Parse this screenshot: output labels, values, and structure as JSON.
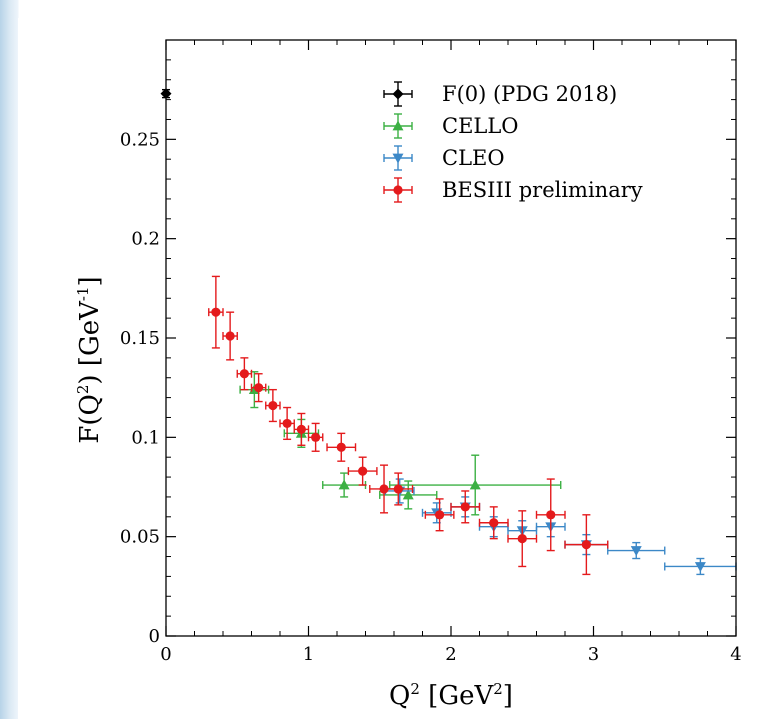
{
  "chart_data": {
    "type": "scatter",
    "xlabel": "Q² [GeV²]",
    "ylabel": "F(Q²) [GeV⁻¹]",
    "xlim": [
      0,
      4
    ],
    "ylim": [
      0,
      0.3
    ],
    "xticks": [
      "0",
      "1",
      "2",
      "3",
      "4"
    ],
    "yticks": [
      "0",
      "0.05",
      "0.1",
      "0.15",
      "0.2",
      "0.25"
    ],
    "grid": false,
    "legend_placement": "top-right",
    "series": [
      {
        "name": "F(0) (PDG 2018)",
        "color": "#000000",
        "marker": "diamond",
        "points": [
          {
            "x": 0.0,
            "y": 0.273,
            "xerr": 0.0,
            "yerr": 0.002
          }
        ]
      },
      {
        "name": "CELLO",
        "color": "#3cb043",
        "marker": "triangle-up",
        "points": [
          {
            "x": 0.62,
            "y": 0.124,
            "xerr": 0.1,
            "yerr": 0.009
          },
          {
            "x": 0.95,
            "y": 0.102,
            "xerr": 0.12,
            "yerr": 0.007
          },
          {
            "x": 1.25,
            "y": 0.076,
            "xerr": 0.15,
            "yerr": 0.006
          },
          {
            "x": 1.7,
            "y": 0.071,
            "xerr": 0.2,
            "yerr": 0.007
          },
          {
            "x": 2.17,
            "y": 0.076,
            "xerr": 0.6,
            "yerr": 0.015
          }
        ]
      },
      {
        "name": "CLEO",
        "color": "#3c88c7",
        "marker": "triangle-down",
        "points": [
          {
            "x": 1.64,
            "y": 0.073,
            "xerr": 0.1,
            "yerr": 0.006
          },
          {
            "x": 1.9,
            "y": 0.062,
            "xerr": 0.1,
            "yerr": 0.005
          },
          {
            "x": 2.1,
            "y": 0.065,
            "xerr": 0.1,
            "yerr": 0.005
          },
          {
            "x": 2.3,
            "y": 0.055,
            "xerr": 0.1,
            "yerr": 0.005
          },
          {
            "x": 2.5,
            "y": 0.053,
            "xerr": 0.1,
            "yerr": 0.005
          },
          {
            "x": 2.7,
            "y": 0.055,
            "xerr": 0.1,
            "yerr": 0.005
          },
          {
            "x": 2.95,
            "y": 0.046,
            "xerr": 0.15,
            "yerr": 0.005
          },
          {
            "x": 3.3,
            "y": 0.043,
            "xerr": 0.2,
            "yerr": 0.004
          },
          {
            "x": 3.75,
            "y": 0.035,
            "xerr": 0.25,
            "yerr": 0.004
          }
        ]
      },
      {
        "name": "BESIII preliminary",
        "color": "#e41a1c",
        "marker": "circle",
        "points": [
          {
            "x": 0.35,
            "y": 0.163,
            "xerr": 0.05,
            "yerr": 0.018
          },
          {
            "x": 0.45,
            "y": 0.151,
            "xerr": 0.05,
            "yerr": 0.012
          },
          {
            "x": 0.55,
            "y": 0.132,
            "xerr": 0.05,
            "yerr": 0.008
          },
          {
            "x": 0.65,
            "y": 0.125,
            "xerr": 0.05,
            "yerr": 0.007
          },
          {
            "x": 0.75,
            "y": 0.116,
            "xerr": 0.05,
            "yerr": 0.008
          },
          {
            "x": 0.85,
            "y": 0.107,
            "xerr": 0.05,
            "yerr": 0.008
          },
          {
            "x": 0.95,
            "y": 0.104,
            "xerr": 0.05,
            "yerr": 0.008
          },
          {
            "x": 1.05,
            "y": 0.1,
            "xerr": 0.05,
            "yerr": 0.007
          },
          {
            "x": 1.23,
            "y": 0.095,
            "xerr": 0.1,
            "yerr": 0.007
          },
          {
            "x": 1.38,
            "y": 0.083,
            "xerr": 0.1,
            "yerr": 0.007
          },
          {
            "x": 1.53,
            "y": 0.074,
            "xerr": 0.1,
            "yerr": 0.012
          },
          {
            "x": 1.63,
            "y": 0.074,
            "xerr": 0.1,
            "yerr": 0.008
          },
          {
            "x": 1.92,
            "y": 0.061,
            "xerr": 0.1,
            "yerr": 0.008
          },
          {
            "x": 2.1,
            "y": 0.065,
            "xerr": 0.1,
            "yerr": 0.008
          },
          {
            "x": 2.3,
            "y": 0.057,
            "xerr": 0.1,
            "yerr": 0.008
          },
          {
            "x": 2.5,
            "y": 0.049,
            "xerr": 0.1,
            "yerr": 0.014
          },
          {
            "x": 2.7,
            "y": 0.061,
            "xerr": 0.1,
            "yerr": 0.018
          },
          {
            "x": 2.95,
            "y": 0.046,
            "xerr": 0.15,
            "yerr": 0.015
          }
        ]
      }
    ]
  }
}
